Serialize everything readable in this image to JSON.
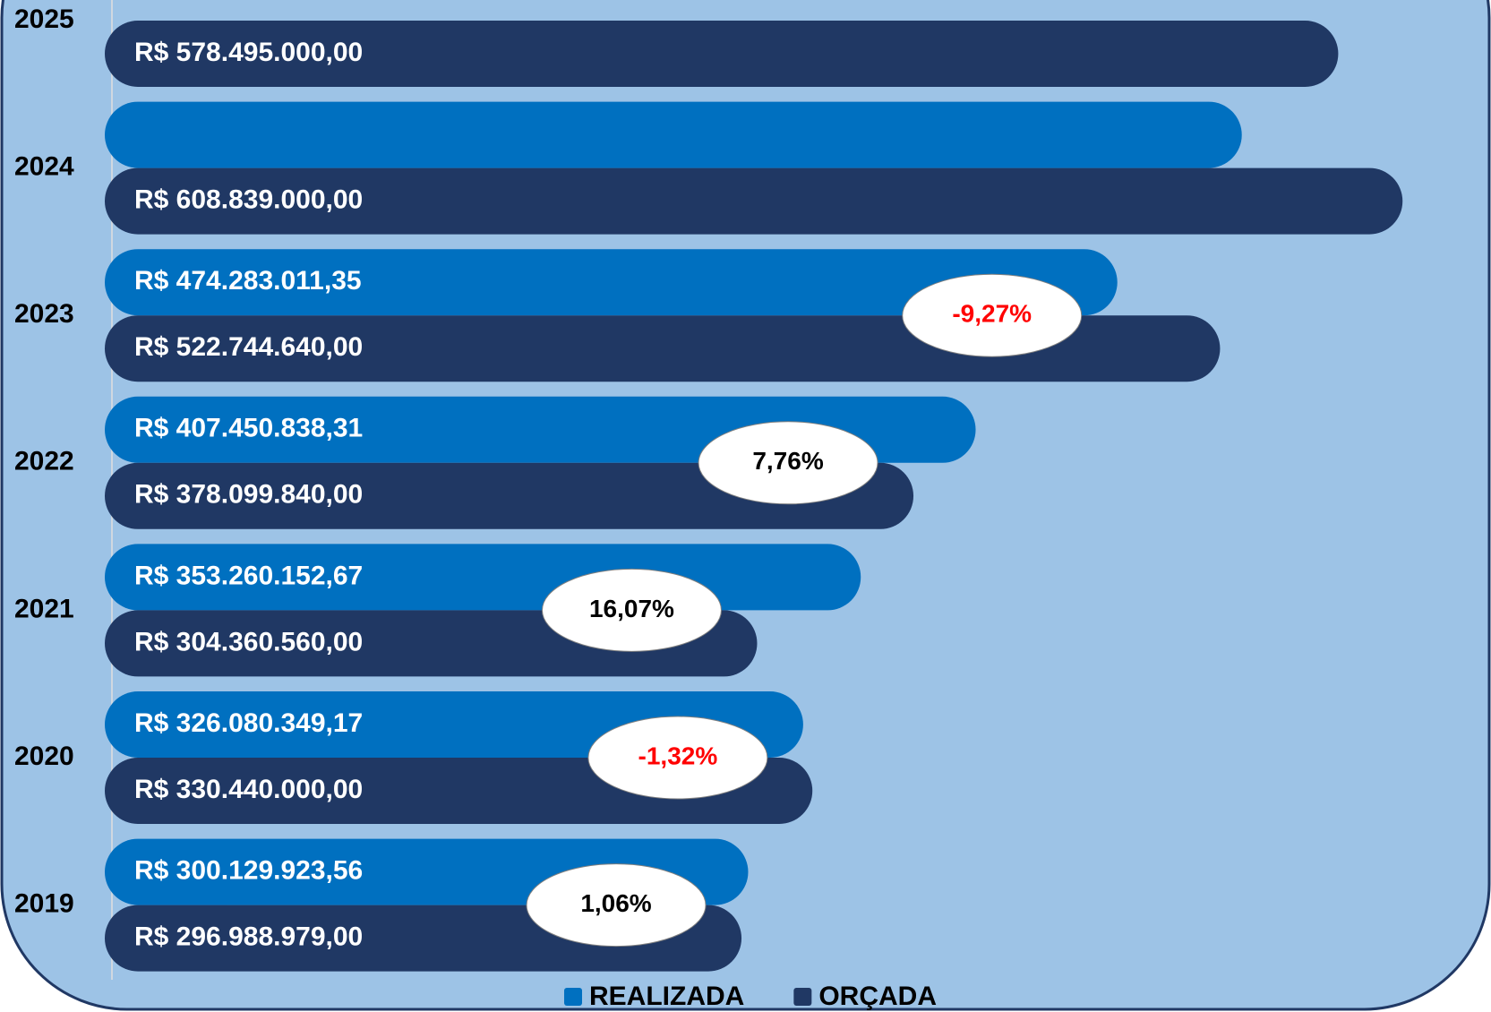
{
  "chart_data": {
    "type": "hbar",
    "categories": [
      "2025",
      "2024",
      "2023",
      "2022",
      "2021",
      "2020",
      "2019"
    ],
    "series": [
      {
        "name": "REALIZADA",
        "color": "#0070c0",
        "values": [
          null,
          533000000,
          474283011.35,
          407450838.31,
          353260152.67,
          326080349.17,
          300129923.56
        ],
        "value_labels": [
          null,
          null,
          "R$ 474.283.011,35",
          "R$ 407.450.838,31",
          "R$ 353.260.152,67",
          "R$ 326.080.349,17",
          "R$ 300.129.923,56"
        ]
      },
      {
        "name": "ORÇADA",
        "color": "#203864",
        "values": [
          578495000,
          608839000,
          522744640,
          378099840,
          304360560,
          330440000,
          296988979
        ],
        "value_labels": [
          "R$ 578.495.000,00",
          "R$ 608.839.000,00",
          "R$ 522.744.640,00",
          "R$ 378.099.840,00",
          "R$ 304.360.560,00",
          "R$ 330.440.000,00",
          "R$ 296.988.979,00"
        ]
      }
    ],
    "variation_values": [
      null,
      null,
      -9.27,
      7.76,
      16.07,
      -1.32,
      1.06
    ],
    "variation_labels": [
      null,
      null,
      "-9,27%",
      "7,76%",
      "16,07%",
      "-1,32%",
      "1,06%"
    ],
    "negative_color": "#ff0000",
    "xlim": [
      0,
      640000000
    ],
    "legend": "bottom"
  }
}
